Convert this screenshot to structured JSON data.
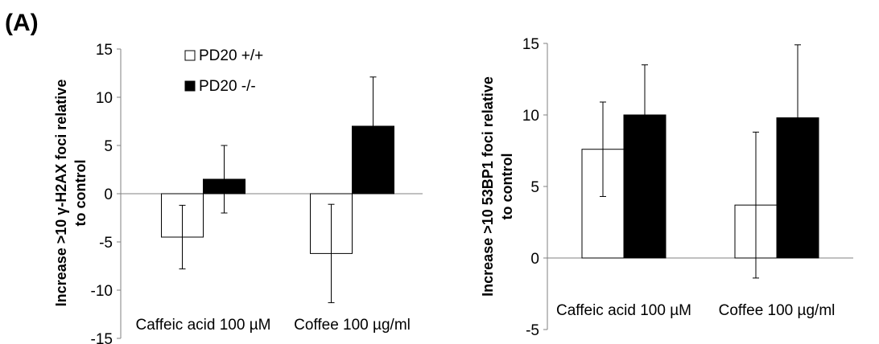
{
  "figure": {
    "panel_label": "(A)"
  },
  "chart_data": [
    {
      "type": "bar",
      "categories": [
        "Caffeic acid 100 µM",
        "Coffee 100 µg/ml"
      ],
      "series": [
        {
          "name": "PD20 +/+",
          "color": "#ffffff",
          "values": [
            -4.5,
            -6.2
          ],
          "errors": [
            3.3,
            5.1
          ]
        },
        {
          "name": "PD20 -/-",
          "color": "#000000",
          "values": [
            1.5,
            7.0
          ],
          "errors": [
            3.5,
            5.1
          ]
        }
      ],
      "ylabel_lines": [
        "Increase >10 γ-H2AX foci relative",
        "to control"
      ],
      "ylim": [
        -15,
        15
      ],
      "yticks": [
        15,
        10,
        5,
        0,
        -5,
        -10,
        -15
      ],
      "legend": "top-left",
      "grid": false
    },
    {
      "type": "bar",
      "categories": [
        "Caffeic acid 100 µM",
        "Coffee 100 µg/ml"
      ],
      "series": [
        {
          "name": "PD20 +/+",
          "color": "#ffffff",
          "values": [
            7.6,
            3.7
          ],
          "errors": [
            3.3,
            5.1
          ]
        },
        {
          "name": "PD20 -/-",
          "color": "#000000",
          "values": [
            10.0,
            9.8
          ],
          "errors": [
            3.5,
            5.1
          ]
        }
      ],
      "ylabel_lines": [
        "Increase >10 53BP1 foci relative",
        "to control"
      ],
      "ylim": [
        -5,
        15
      ],
      "yticks": [
        15,
        10,
        5,
        0,
        -5
      ],
      "legend": "none",
      "grid": false
    }
  ]
}
